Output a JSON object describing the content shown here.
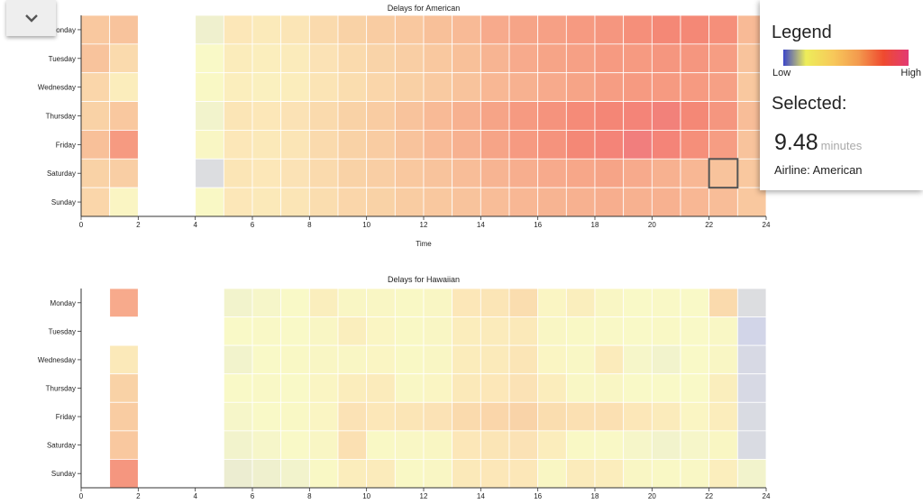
{
  "toggle": {
    "icon": "chevron-down-icon"
  },
  "legend": {
    "title": "Legend",
    "low_label": "Low",
    "high_label": "High",
    "colors": [
      "#3c46c8",
      "#eded5a",
      "#f7c85a",
      "#f39a4e",
      "#ef4a2f",
      "#e23a74"
    ],
    "selected_label": "Selected:",
    "selected_value": "9.48",
    "selected_unit": "minutes",
    "airline_line": "Airline: American"
  },
  "chart_data": [
    {
      "type": "heatmap",
      "title": "Delays for American",
      "xlabel": "Time",
      "ylabel": "",
      "x_range": [
        0,
        24
      ],
      "x_ticks": [
        "0",
        "2",
        "4",
        "6",
        "8",
        "10",
        "12",
        "14",
        "16",
        "18",
        "20",
        "22",
        "24"
      ],
      "days": [
        "Monday",
        "Tuesday",
        "Wednesday",
        "Thursday",
        "Friday",
        "Saturday",
        "Sunday"
      ],
      "hours": [
        0,
        1,
        4,
        5,
        6,
        7,
        8,
        9,
        10,
        11,
        12,
        13,
        14,
        15,
        16,
        17,
        18,
        19,
        20,
        21,
        22,
        23
      ],
      "values": [
        [
          0.6,
          0.62,
          0.15,
          0.4,
          0.37,
          0.42,
          0.5,
          0.55,
          0.58,
          0.6,
          0.63,
          0.65,
          0.7,
          0.72,
          0.73,
          0.75,
          0.76,
          0.78,
          0.8,
          0.8,
          0.78,
          0.65
        ],
        [
          0.62,
          0.5,
          0.18,
          0.35,
          0.33,
          0.36,
          0.44,
          0.5,
          0.54,
          0.57,
          0.6,
          0.63,
          0.67,
          0.7,
          0.72,
          0.73,
          0.75,
          0.75,
          0.76,
          0.76,
          0.74,
          0.62
        ],
        [
          0.52,
          0.34,
          0.2,
          0.33,
          0.3,
          0.34,
          0.43,
          0.48,
          0.52,
          0.56,
          0.59,
          0.62,
          0.66,
          0.68,
          0.7,
          0.72,
          0.74,
          0.75,
          0.75,
          0.75,
          0.73,
          0.6
        ],
        [
          0.55,
          0.6,
          0.16,
          0.42,
          0.4,
          0.44,
          0.5,
          0.55,
          0.58,
          0.62,
          0.65,
          0.68,
          0.72,
          0.75,
          0.77,
          0.79,
          0.81,
          0.82,
          0.84,
          0.8,
          0.76,
          0.64
        ],
        [
          0.63,
          0.75,
          0.22,
          0.4,
          0.38,
          0.42,
          0.5,
          0.55,
          0.58,
          0.62,
          0.65,
          0.68,
          0.72,
          0.75,
          0.77,
          0.8,
          0.82,
          0.86,
          0.82,
          0.78,
          0.74,
          0.62
        ],
        [
          0.55,
          0.57,
          0.08,
          0.42,
          0.4,
          0.44,
          0.5,
          0.55,
          0.57,
          0.6,
          0.62,
          0.64,
          0.67,
          0.69,
          0.7,
          0.71,
          0.72,
          0.7,
          0.68,
          0.66,
          0.62,
          0.6
        ],
        [
          0.52,
          0.24,
          0.2,
          0.4,
          0.38,
          0.42,
          0.48,
          0.52,
          0.55,
          0.58,
          0.6,
          0.62,
          0.64,
          0.66,
          0.67,
          0.68,
          0.69,
          0.68,
          0.68,
          0.66,
          0.64,
          0.6
        ]
      ],
      "highlight": {
        "day": "Saturday",
        "hour": 22
      }
    },
    {
      "type": "heatmap",
      "title": "Delays for Hawaiian",
      "xlabel": "",
      "ylabel": "",
      "x_range": [
        0,
        24
      ],
      "x_ticks": [
        "0",
        "2",
        "4",
        "6",
        "8",
        "10",
        "12",
        "14",
        "16",
        "18",
        "20",
        "22",
        "24"
      ],
      "days": [
        "Monday",
        "Tuesday",
        "Wednesday",
        "Thursday",
        "Friday",
        "Saturday",
        "Sunday"
      ],
      "hours": [
        1,
        5,
        6,
        7,
        8,
        9,
        10,
        11,
        12,
        13,
        14,
        15,
        16,
        17,
        18,
        19,
        20,
        21,
        22,
        23
      ],
      "values": [
        [
          0.7,
          0.16,
          0.17,
          0.18,
          0.32,
          0.22,
          0.22,
          0.2,
          0.22,
          0.4,
          0.42,
          0.48,
          0.24,
          0.32,
          0.22,
          0.18,
          0.19,
          0.18,
          0.5,
          0.08
        ],
        [
          null,
          0.18,
          0.19,
          0.18,
          0.22,
          0.32,
          0.24,
          0.2,
          0.22,
          0.34,
          0.36,
          0.38,
          0.22,
          0.2,
          0.19,
          0.18,
          0.2,
          0.18,
          0.21,
          0.04
        ],
        [
          0.38,
          0.16,
          0.18,
          0.2,
          0.22,
          0.22,
          0.24,
          0.2,
          0.22,
          0.35,
          0.37,
          0.42,
          0.24,
          0.21,
          0.36,
          0.17,
          0.16,
          0.18,
          0.22,
          0.06
        ],
        [
          0.55,
          0.18,
          0.19,
          0.18,
          0.24,
          0.34,
          0.36,
          0.21,
          0.24,
          0.38,
          0.4,
          0.44,
          0.34,
          0.21,
          0.22,
          0.18,
          0.18,
          0.18,
          0.32,
          0.06
        ],
        [
          0.58,
          0.17,
          0.18,
          0.2,
          0.24,
          0.44,
          0.4,
          0.42,
          0.44,
          0.5,
          0.52,
          0.54,
          0.48,
          0.46,
          0.46,
          0.4,
          0.36,
          0.24,
          0.34,
          0.07
        ],
        [
          0.6,
          0.16,
          0.17,
          0.18,
          0.22,
          0.46,
          0.2,
          0.21,
          0.23,
          0.4,
          0.42,
          0.44,
          0.34,
          0.2,
          0.19,
          0.17,
          0.16,
          0.17,
          0.23,
          0.07
        ],
        [
          0.76,
          0.14,
          0.15,
          0.16,
          0.2,
          0.34,
          0.36,
          0.2,
          0.22,
          0.38,
          0.4,
          0.4,
          0.23,
          0.36,
          0.34,
          0.22,
          0.2,
          0.21,
          0.33,
          0.16
        ]
      ]
    }
  ]
}
